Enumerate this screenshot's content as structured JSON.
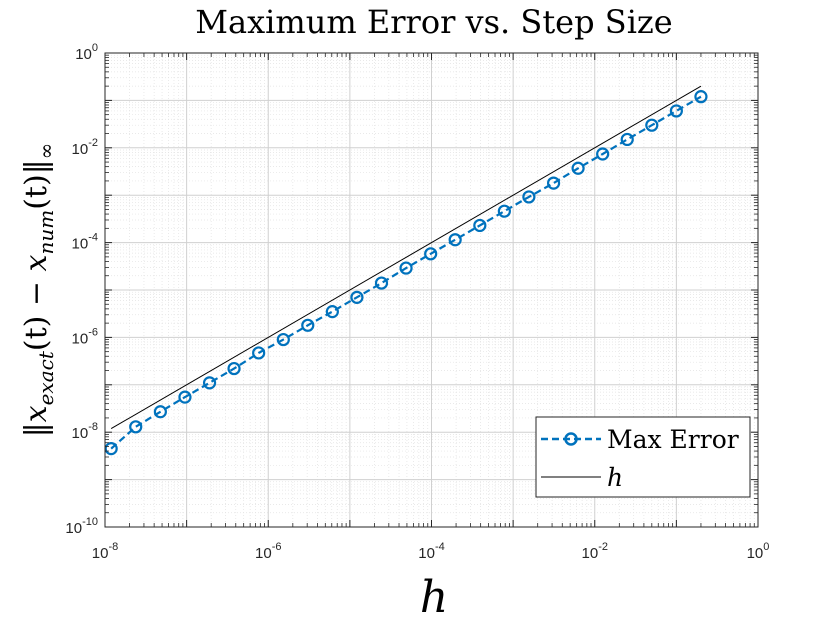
{
  "chart_data": {
    "type": "scatter",
    "title": "Maximum Error vs. Step Size",
    "xlabel": "h",
    "ylabel_parts": {
      "open": "‖",
      "x1": "x",
      "sub1": "exact",
      "mid": "(t) − ",
      "x2": "x",
      "sub2": "num",
      "close": "(t)‖",
      "inf": "∞"
    },
    "xscale": "log",
    "yscale": "log",
    "xlim": [
      1e-08,
      1
    ],
    "ylim": [
      1e-10,
      1
    ],
    "grid": true,
    "minor_grid": true,
    "legend_placement": "bottom-right",
    "x_ticks": [
      {
        "base": "10",
        "exp": "-8"
      },
      {
        "base": "10",
        "exp": "-6"
      },
      {
        "base": "10",
        "exp": "-4"
      },
      {
        "base": "10",
        "exp": "-2"
      },
      {
        "base": "10",
        "exp": "0"
      }
    ],
    "y_ticks": [
      {
        "base": "10",
        "exp": "-10"
      },
      {
        "base": "10",
        "exp": "-8"
      },
      {
        "base": "10",
        "exp": "-6"
      },
      {
        "base": "10",
        "exp": "-4"
      },
      {
        "base": "10",
        "exp": "-2"
      },
      {
        "base": "10",
        "exp": "0"
      }
    ],
    "series": [
      {
        "name": "Max Error",
        "style": "dashed line with circle markers",
        "color": "#0072BD",
        "x": [
          1.19e-08,
          2.38e-08,
          4.77e-08,
          9.54e-08,
          1.91e-07,
          3.81e-07,
          7.63e-07,
          1.53e-06,
          3.05e-06,
          6.1e-06,
          1.22e-05,
          2.44e-05,
          4.88e-05,
          9.77e-05,
          0.000195,
          0.000391,
          0.000781,
          0.00156,
          0.00313,
          0.00625,
          0.0125,
          0.025,
          0.05,
          0.1,
          0.2
        ],
        "y": [
          4.5e-09,
          1.3e-08,
          2.7e-08,
          5.5e-08,
          1.1e-07,
          2.2e-07,
          4.7e-07,
          9e-07,
          1.8e-06,
          3.5e-06,
          7e-06,
          1.4e-05,
          2.9e-05,
          5.8e-05,
          0.000115,
          0.00023,
          0.00046,
          0.00092,
          0.0018,
          0.0037,
          0.0074,
          0.015,
          0.03,
          0.06,
          0.12
        ]
      },
      {
        "name": "h",
        "style": "solid line",
        "color": "#000000",
        "x": [
          1.19e-08,
          0.2
        ],
        "y": [
          1.19e-08,
          0.2
        ]
      }
    ]
  }
}
